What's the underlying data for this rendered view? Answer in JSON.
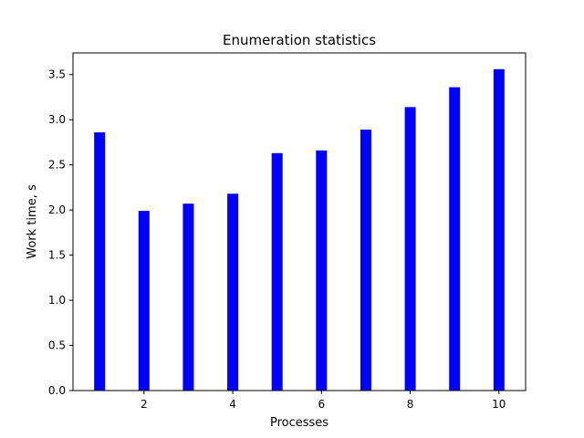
{
  "chart_data": {
    "type": "bar",
    "title": "Enumeration statistics",
    "xlabel": "Processes",
    "ylabel": "Work time, s",
    "x": [
      1,
      2,
      3,
      4,
      5,
      6,
      7,
      8,
      9,
      10
    ],
    "values": [
      2.86,
      1.99,
      2.07,
      2.18,
      2.63,
      2.66,
      2.89,
      3.14,
      3.36,
      3.56
    ],
    "xlim": [
      0.4,
      10.6
    ],
    "ylim": [
      0,
      3.74
    ],
    "x_ticks": [
      2,
      4,
      6,
      8,
      10
    ],
    "y_ticks": [
      0.0,
      0.5,
      1.0,
      1.5,
      2.0,
      2.5,
      3.0,
      3.5
    ],
    "x_tick_labels": [
      "2",
      "4",
      "6",
      "8",
      "10"
    ],
    "y_tick_labels": [
      "0.0",
      "0.5",
      "1.0",
      "1.5",
      "2.0",
      "2.5",
      "3.0",
      "3.5"
    ],
    "bar_color": "#0000ff",
    "grid": false
  }
}
